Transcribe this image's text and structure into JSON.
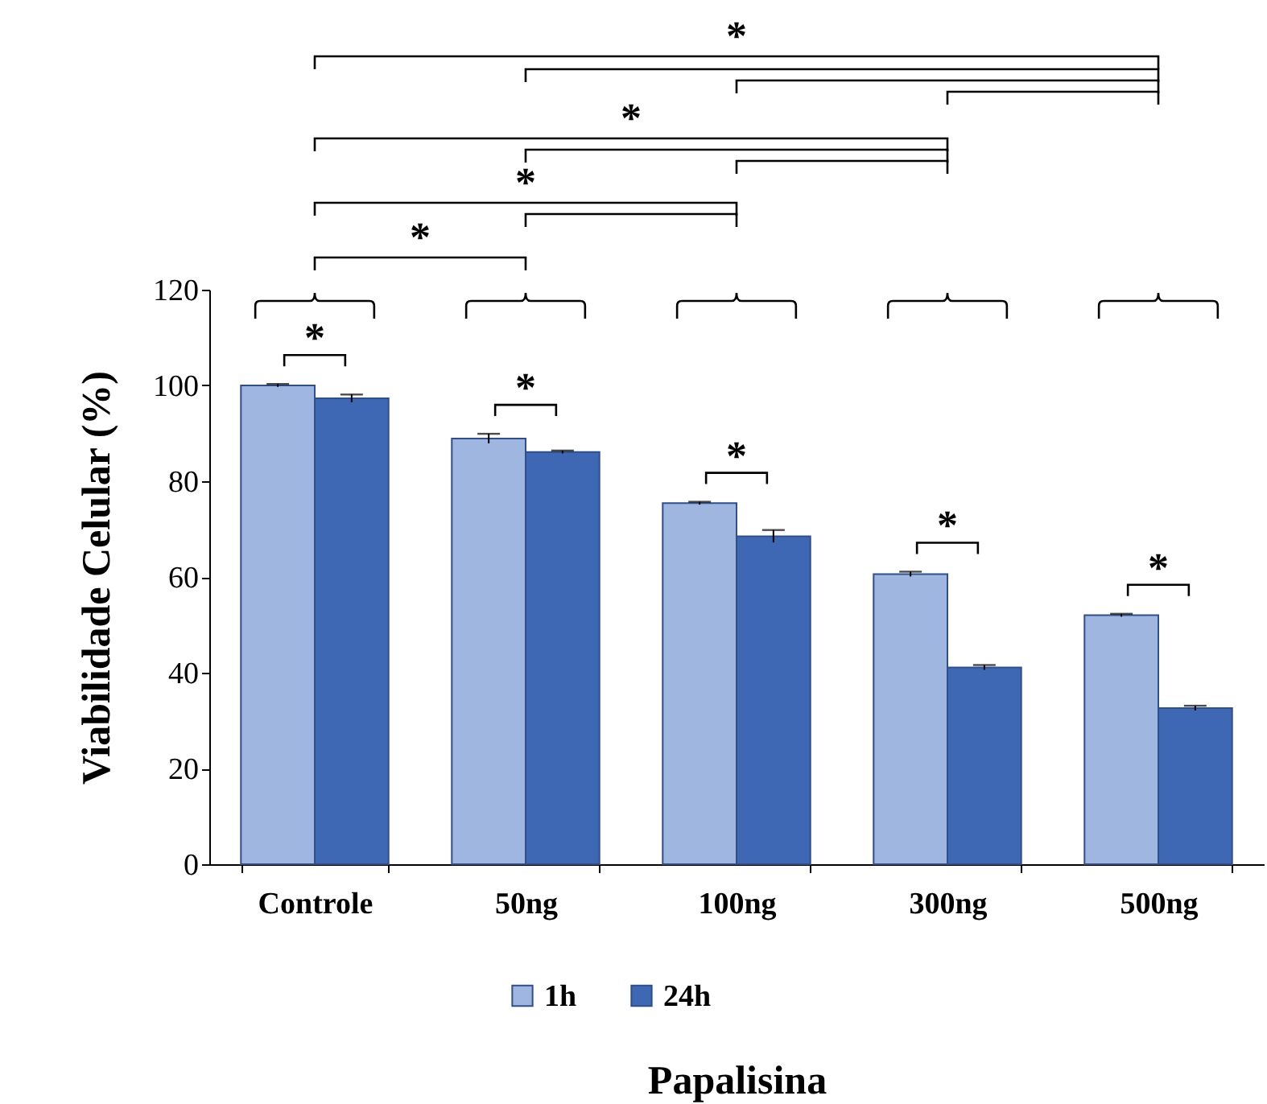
{
  "chart_data": {
    "type": "bar",
    "categories": [
      "Controle",
      "50ng",
      "100ng",
      "300ng",
      "500ng"
    ],
    "series": [
      {
        "name": "1h",
        "color": "#9fb6e0",
        "values": [
          100,
          88.9,
          75.4,
          60.6,
          52
        ],
        "errors": [
          0.3,
          1,
          0.3,
          0.5,
          0.3
        ]
      },
      {
        "name": "24h",
        "color": "#3f68b4",
        "values": [
          97.3,
          86.1,
          68.5,
          41.1,
          32.6
        ],
        "errors": [
          0.8,
          0.3,
          1.3,
          0.5,
          0.5
        ]
      }
    ],
    "xlabel": "Papalisina",
    "ylabel": "Viabilidade Celular  (%)",
    "ylim": [
      0,
      120
    ],
    "yticks": [
      0,
      20,
      40,
      60,
      80,
      100,
      120
    ],
    "grid": false,
    "legend": "bottom",
    "annotations": [
      "*",
      "*",
      "*",
      "*",
      "*",
      "*",
      "*",
      "*",
      "*"
    ]
  }
}
